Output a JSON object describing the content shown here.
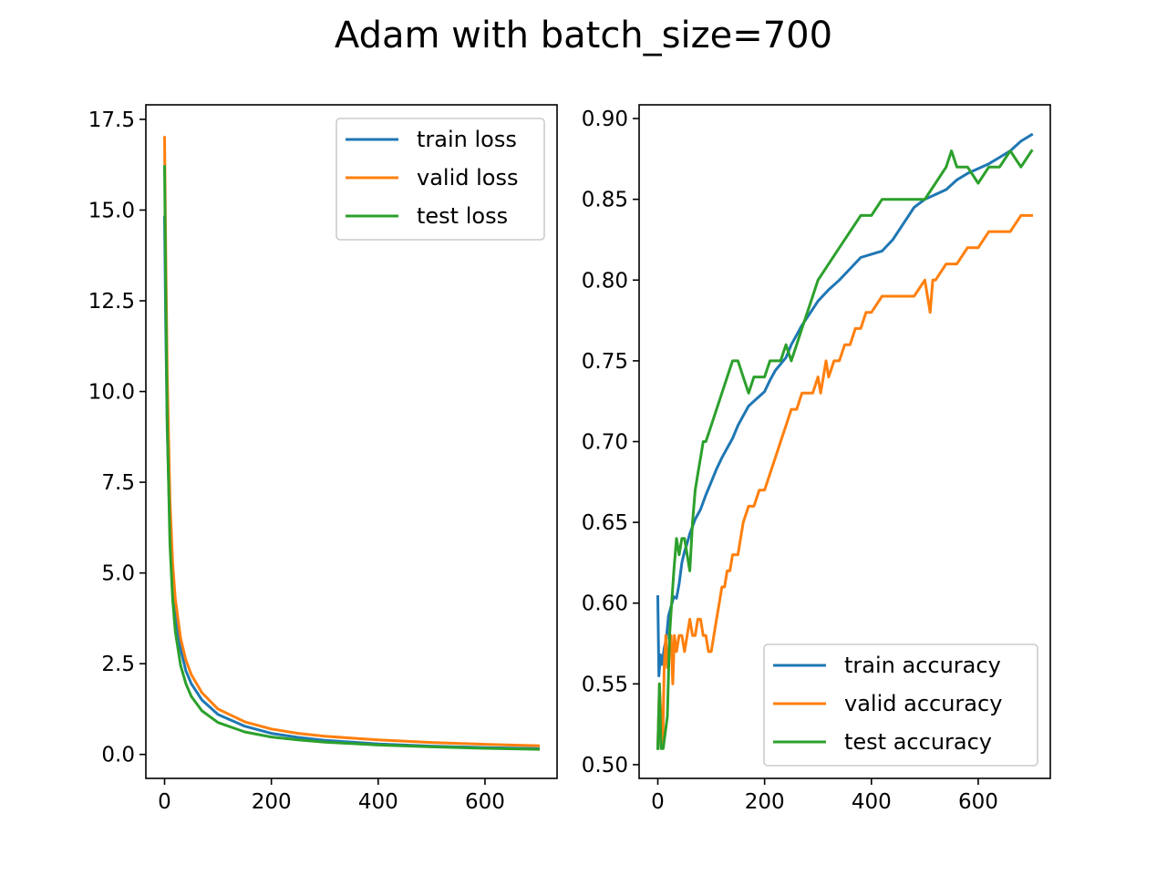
{
  "figure": {
    "suptitle": "Adam with batch_size=700"
  },
  "colors": {
    "train": "#1f77b4",
    "valid": "#ff7f0e",
    "test": "#2ca02c"
  },
  "chart_data": [
    {
      "type": "line",
      "title": "",
      "xlabel": "",
      "ylabel": "",
      "xlim": [
        -35,
        735
      ],
      "ylim": [
        -0.66,
        17.9
      ],
      "xticks": [
        0,
        200,
        400,
        600
      ],
      "xtick_labels": [
        "0",
        "200",
        "400",
        "600"
      ],
      "yticks": [
        0.0,
        2.5,
        5.0,
        7.5,
        10.0,
        12.5,
        15.0,
        17.5
      ],
      "ytick_labels": [
        "0.0",
        "2.5",
        "5.0",
        "7.5",
        "10.0",
        "12.5",
        "15.0",
        "17.5"
      ],
      "grid": false,
      "legend_position": "upper right",
      "series": [
        {
          "name": "train loss",
          "color": "#1f77b4",
          "x": [
            0,
            2,
            5,
            10,
            15,
            20,
            30,
            40,
            50,
            70,
            100,
            150,
            200,
            250,
            300,
            400,
            500,
            600,
            700
          ],
          "y": [
            14.8,
            12.0,
            9.0,
            6.2,
            4.8,
            3.9,
            2.9,
            2.3,
            1.95,
            1.5,
            1.1,
            0.78,
            0.58,
            0.47,
            0.39,
            0.29,
            0.23,
            0.19,
            0.16
          ]
        },
        {
          "name": "valid loss",
          "color": "#ff7f0e",
          "x": [
            0,
            2,
            5,
            10,
            15,
            20,
            30,
            40,
            50,
            70,
            100,
            150,
            200,
            250,
            300,
            400,
            500,
            600,
            700
          ],
          "y": [
            17.0,
            14.0,
            10.5,
            7.0,
            5.3,
            4.3,
            3.2,
            2.6,
            2.2,
            1.7,
            1.25,
            0.9,
            0.7,
            0.58,
            0.5,
            0.4,
            0.33,
            0.28,
            0.24
          ]
        },
        {
          "name": "test loss",
          "color": "#2ca02c",
          "x": [
            0,
            2,
            5,
            10,
            15,
            20,
            30,
            40,
            50,
            70,
            100,
            150,
            200,
            250,
            300,
            400,
            500,
            600,
            700
          ],
          "y": [
            16.2,
            13.0,
            9.2,
            5.8,
            4.3,
            3.4,
            2.45,
            1.95,
            1.6,
            1.2,
            0.88,
            0.62,
            0.48,
            0.4,
            0.34,
            0.26,
            0.21,
            0.17,
            0.14
          ]
        }
      ]
    },
    {
      "type": "line",
      "title": "",
      "xlabel": "",
      "ylabel": "",
      "xlim": [
        -35,
        735
      ],
      "ylim": [
        0.4915,
        0.9085
      ],
      "xticks": [
        0,
        200,
        400,
        600
      ],
      "xtick_labels": [
        "0",
        "200",
        "400",
        "600"
      ],
      "yticks": [
        0.5,
        0.55,
        0.6,
        0.65,
        0.7,
        0.75,
        0.8,
        0.85,
        0.9
      ],
      "ytick_labels": [
        "0.50",
        "0.55",
        "0.60",
        "0.65",
        "0.70",
        "0.75",
        "0.80",
        "0.85",
        "0.90"
      ],
      "grid": false,
      "legend_position": "lower right",
      "series": [
        {
          "name": "train accuracy",
          "color": "#1f77b4",
          "x": [
            0,
            2,
            5,
            8,
            12,
            16,
            20,
            25,
            30,
            35,
            40,
            45,
            50,
            55,
            60,
            70,
            80,
            90,
            100,
            110,
            120,
            130,
            140,
            150,
            160,
            170,
            180,
            190,
            200,
            210,
            220,
            230,
            240,
            250,
            260,
            270,
            280,
            290,
            300,
            320,
            340,
            360,
            380,
            400,
            420,
            440,
            460,
            480,
            500,
            520,
            540,
            560,
            580,
            600,
            620,
            640,
            660,
            680,
            700
          ],
          "y": [
            0.604,
            0.555,
            0.568,
            0.562,
            0.572,
            0.578,
            0.592,
            0.598,
            0.604,
            0.603,
            0.612,
            0.625,
            0.632,
            0.637,
            0.643,
            0.652,
            0.658,
            0.667,
            0.675,
            0.683,
            0.69,
            0.696,
            0.702,
            0.71,
            0.716,
            0.722,
            0.725,
            0.728,
            0.731,
            0.738,
            0.744,
            0.748,
            0.752,
            0.76,
            0.766,
            0.772,
            0.777,
            0.782,
            0.787,
            0.794,
            0.8,
            0.807,
            0.814,
            0.816,
            0.818,
            0.825,
            0.835,
            0.845,
            0.85,
            0.853,
            0.856,
            0.862,
            0.866,
            0.869,
            0.872,
            0.876,
            0.88,
            0.886,
            0.89
          ]
        },
        {
          "name": "valid accuracy",
          "color": "#ff7f0e",
          "x": [
            0,
            3,
            6,
            9,
            12,
            15,
            18,
            21,
            25,
            28,
            31,
            35,
            40,
            45,
            50,
            55,
            60,
            65,
            70,
            75,
            80,
            85,
            90,
            95,
            100,
            105,
            110,
            115,
            120,
            125,
            130,
            135,
            140,
            145,
            150,
            155,
            160,
            170,
            180,
            190,
            200,
            210,
            220,
            230,
            240,
            250,
            260,
            270,
            280,
            290,
            300,
            305,
            310,
            315,
            320,
            330,
            340,
            350,
            360,
            370,
            380,
            390,
            400,
            420,
            440,
            460,
            480,
            500,
            510,
            515,
            520,
            540,
            560,
            580,
            600,
            620,
            640,
            660,
            680,
            700
          ],
          "y": [
            0.51,
            0.55,
            0.53,
            0.51,
            0.56,
            0.58,
            0.56,
            0.57,
            0.58,
            0.55,
            0.58,
            0.57,
            0.58,
            0.58,
            0.57,
            0.58,
            0.59,
            0.58,
            0.58,
            0.59,
            0.59,
            0.58,
            0.58,
            0.57,
            0.57,
            0.58,
            0.59,
            0.6,
            0.61,
            0.61,
            0.62,
            0.62,
            0.63,
            0.63,
            0.63,
            0.64,
            0.65,
            0.66,
            0.66,
            0.67,
            0.67,
            0.68,
            0.69,
            0.7,
            0.71,
            0.72,
            0.72,
            0.73,
            0.73,
            0.73,
            0.74,
            0.73,
            0.74,
            0.75,
            0.74,
            0.75,
            0.75,
            0.76,
            0.76,
            0.77,
            0.77,
            0.78,
            0.78,
            0.79,
            0.79,
            0.79,
            0.79,
            0.8,
            0.78,
            0.8,
            0.8,
            0.81,
            0.81,
            0.82,
            0.82,
            0.83,
            0.83,
            0.83,
            0.84,
            0.84
          ]
        },
        {
          "name": "test accuracy",
          "color": "#2ca02c",
          "x": [
            0,
            3,
            6,
            10,
            14,
            18,
            22,
            26,
            30,
            35,
            40,
            45,
            50,
            55,
            60,
            65,
            70,
            75,
            80,
            85,
            90,
            100,
            110,
            120,
            130,
            140,
            150,
            160,
            170,
            180,
            190,
            200,
            210,
            220,
            230,
            240,
            250,
            260,
            270,
            280,
            290,
            300,
            320,
            340,
            360,
            380,
            400,
            420,
            440,
            460,
            480,
            500,
            520,
            540,
            550,
            560,
            580,
            600,
            620,
            640,
            660,
            680,
            700
          ],
          "y": [
            0.51,
            0.55,
            0.51,
            0.51,
            0.52,
            0.53,
            0.58,
            0.6,
            0.62,
            0.64,
            0.63,
            0.64,
            0.64,
            0.63,
            0.62,
            0.65,
            0.67,
            0.68,
            0.69,
            0.7,
            0.7,
            0.71,
            0.72,
            0.73,
            0.74,
            0.75,
            0.75,
            0.74,
            0.73,
            0.74,
            0.74,
            0.74,
            0.75,
            0.75,
            0.75,
            0.76,
            0.75,
            0.76,
            0.77,
            0.78,
            0.79,
            0.8,
            0.81,
            0.82,
            0.83,
            0.84,
            0.84,
            0.85,
            0.85,
            0.85,
            0.85,
            0.85,
            0.86,
            0.87,
            0.88,
            0.87,
            0.87,
            0.86,
            0.87,
            0.87,
            0.88,
            0.87,
            0.88
          ]
        }
      ]
    }
  ]
}
